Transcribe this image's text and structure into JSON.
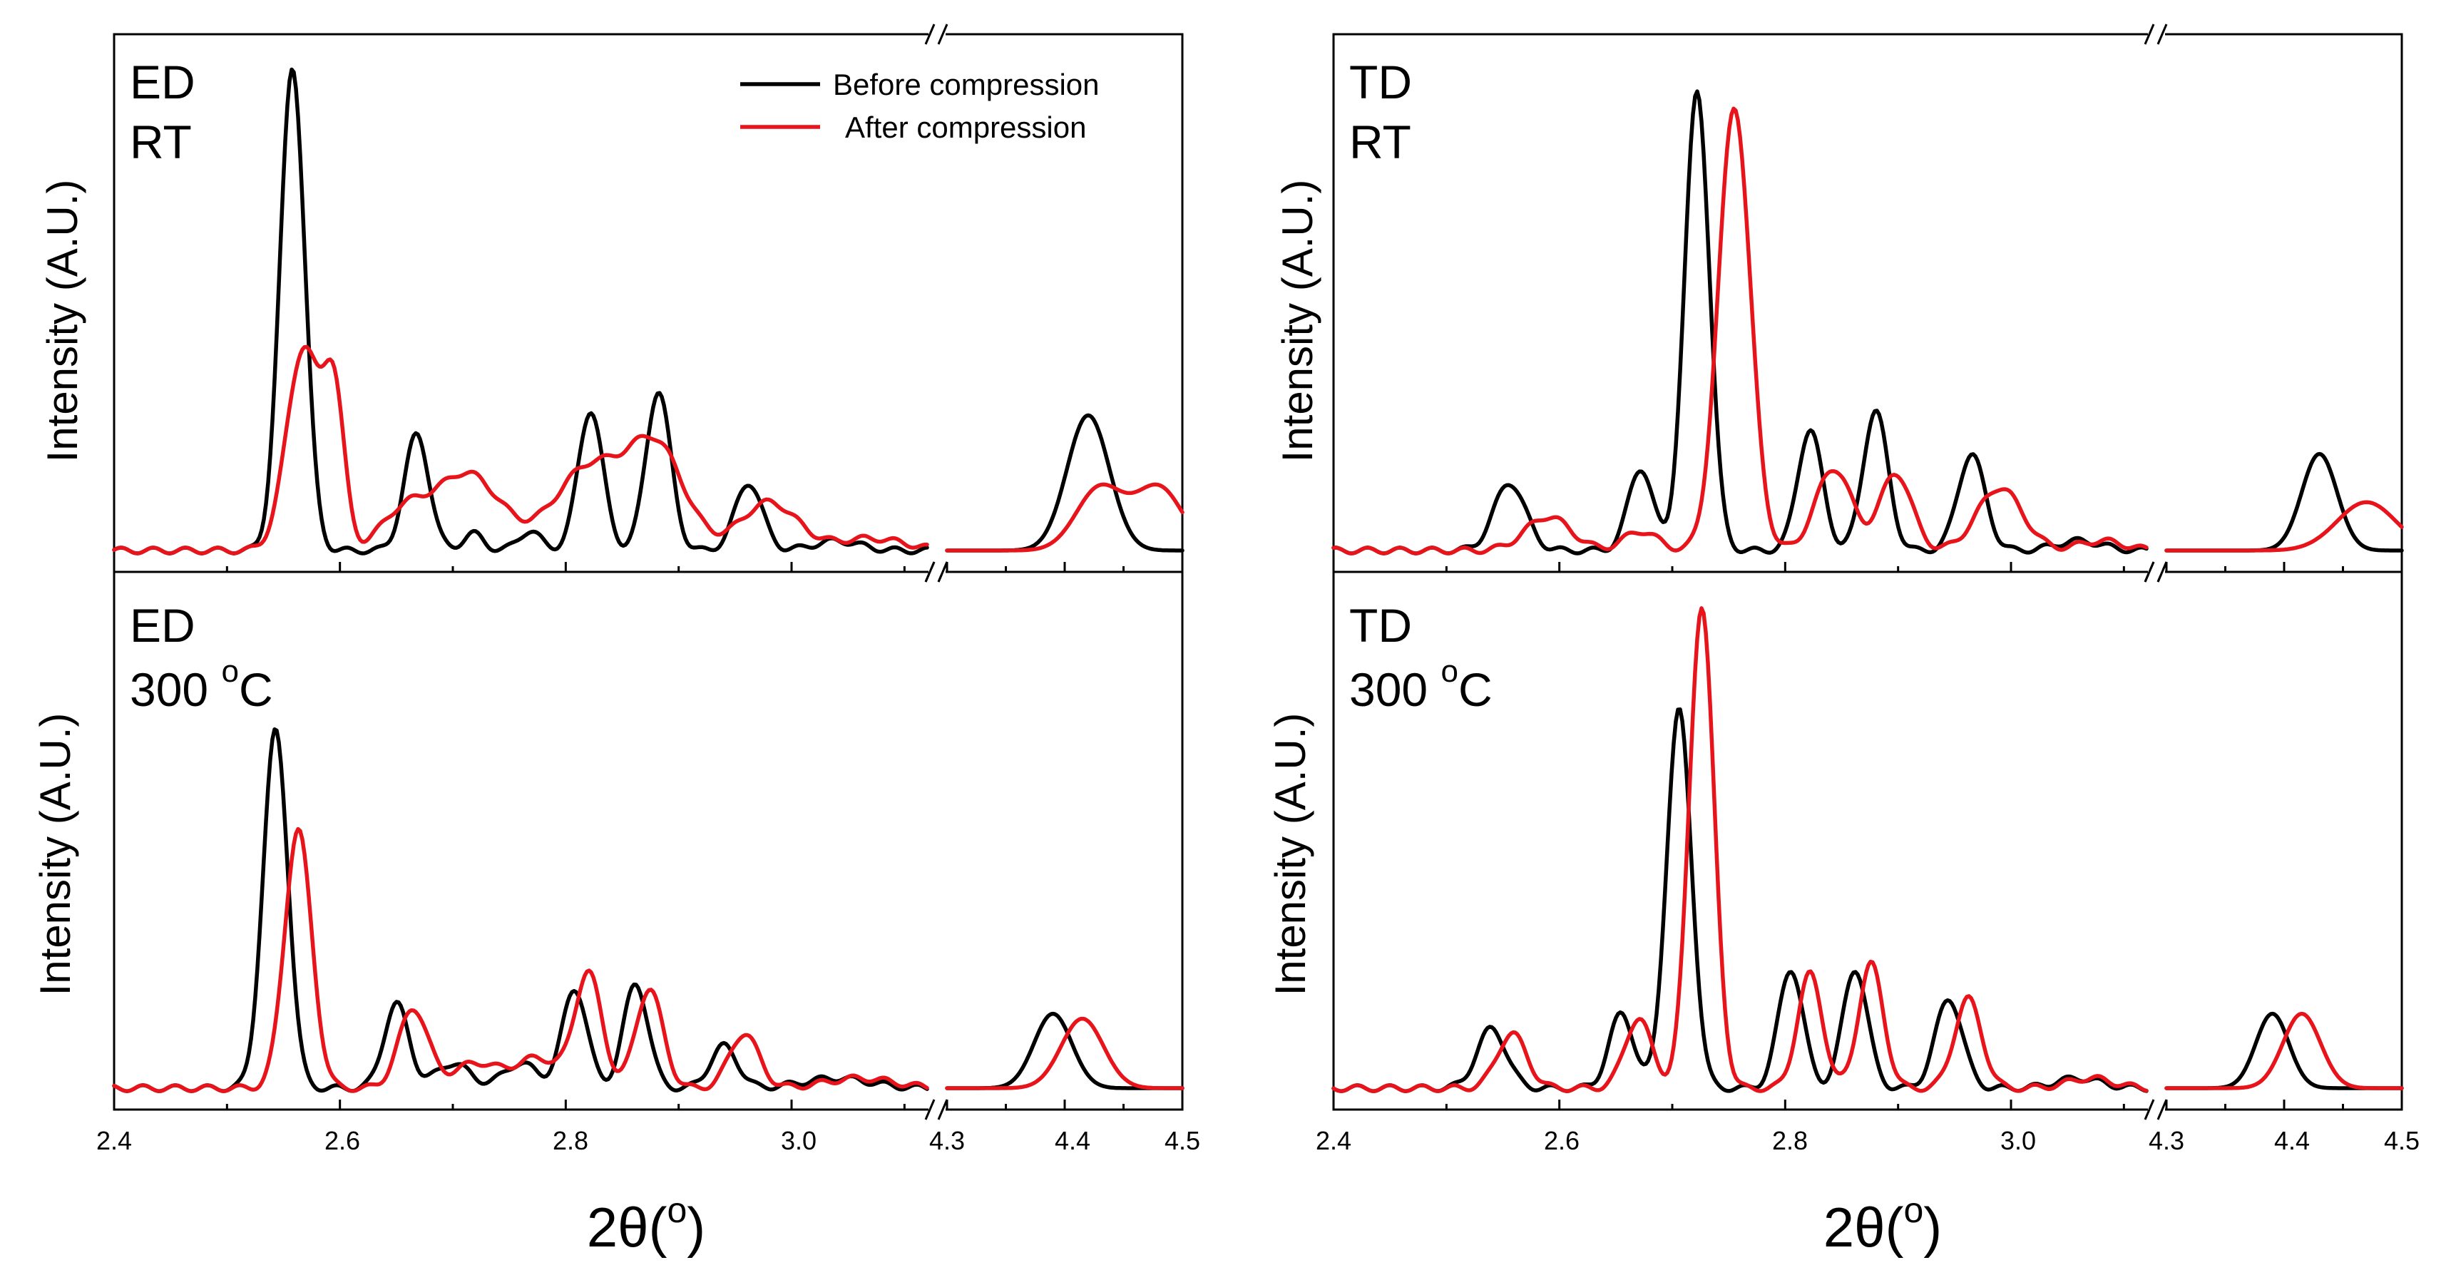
{
  "chart_data": {
    "type": "line",
    "figure_xlabel": "2θ(°)",
    "xlabel_parts": [
      "2",
      "θ",
      "(",
      "o",
      ")"
    ],
    "ylabel": "Intensity (A.U.)",
    "legend": {
      "placement": "top-right of top-left panel",
      "entries": [
        {
          "name": "Before compression",
          "color": "#000000"
        },
        {
          "name": "After compression",
          "color": "#e8141b"
        }
      ]
    },
    "axis_segments": [
      {
        "range": [
          2.4,
          3.12
        ],
        "ticks": [
          2.4,
          2.6,
          2.8,
          3.0
        ],
        "tick_labels": [
          "2.4",
          "2.6",
          "2.8",
          "3.0"
        ]
      },
      {
        "range": [
          4.3,
          4.5
        ],
        "ticks": [
          4.3,
          4.4,
          4.5
        ],
        "tick_labels": [
          "4.3",
          "4.4",
          "4.5"
        ]
      }
    ],
    "axis_break": true,
    "series_colors": {
      "before": "#000000",
      "after": "#e8141b"
    },
    "panels": [
      {
        "id": "ed-rt",
        "label_lines": [
          "ED",
          "RT"
        ],
        "peaks": {
          "before": {
            "seg1": [
              [
                2.558,
                1.0,
                0.011
              ],
              [
                2.668,
                0.24,
                0.011
              ],
              [
                2.718,
                0.035,
                0.009
              ],
              [
                2.768,
                0.04,
                0.01
              ],
              [
                2.822,
                0.29,
                0.011
              ],
              [
                2.882,
                0.33,
                0.011
              ],
              [
                2.962,
                0.14,
                0.012
              ],
              [
                3.04,
                0.02,
                0.02
              ]
            ],
            "seg2": [
              [
                4.42,
                0.28,
                0.018
              ]
            ]
          },
          "after": {
            "seg1": [
              [
                2.568,
                0.42,
                0.015
              ],
              [
                2.595,
                0.3,
                0.009
              ],
              [
                2.655,
                0.07,
                0.02
              ],
              [
                2.712,
                0.16,
                0.03
              ],
              [
                2.82,
                0.17,
                0.03
              ],
              [
                2.88,
                0.21,
                0.025
              ],
              [
                2.98,
                0.1,
                0.025
              ],
              [
                3.07,
                0.025,
                0.03
              ]
            ],
            "seg2": [
              [
                4.43,
                0.13,
                0.02
              ],
              [
                4.48,
                0.13,
                0.02
              ]
            ]
          }
        }
      },
      {
        "id": "td-rt",
        "label_lines": [
          "TD",
          "RT"
        ],
        "peaks": {
          "before": {
            "seg1": [
              [
                2.556,
                0.14,
                0.014
              ],
              [
                2.672,
                0.17,
                0.011
              ],
              [
                2.722,
                0.95,
                0.011
              ],
              [
                2.822,
                0.25,
                0.011
              ],
              [
                2.88,
                0.29,
                0.011
              ],
              [
                2.965,
                0.2,
                0.012
              ],
              [
                3.06,
                0.02,
                0.02
              ]
            ],
            "seg2": [
              [
                4.43,
                0.2,
                0.015
              ]
            ]
          },
          "after": {
            "seg1": [
              [
                2.59,
                0.07,
                0.02
              ],
              [
                2.672,
                0.04,
                0.015
              ],
              [
                2.755,
                0.92,
                0.014
              ],
              [
                2.843,
                0.17,
                0.016
              ],
              [
                2.898,
                0.16,
                0.014
              ],
              [
                2.99,
                0.13,
                0.02
              ],
              [
                3.08,
                0.02,
                0.02
              ]
            ],
            "seg2": [
              [
                4.47,
                0.1,
                0.025
              ]
            ]
          }
        }
      },
      {
        "id": "ed-300",
        "label_lines": [
          "ED",
          "300 °C"
        ],
        "label_parts": [
          "300 ",
          "o",
          "C"
        ],
        "peaks": {
          "before": {
            "seg1": [
              [
                2.543,
                0.72,
                0.011
              ],
              [
                2.65,
                0.17,
                0.011
              ],
              [
                2.7,
                0.05,
                0.015
              ],
              [
                2.76,
                0.05,
                0.015
              ],
              [
                2.808,
                0.2,
                0.011
              ],
              [
                2.862,
                0.21,
                0.011
              ],
              [
                2.94,
                0.085,
                0.012
              ],
              [
                3.04,
                0.02,
                0.03
              ]
            ],
            "seg2": [
              [
                4.39,
                0.15,
                0.016
              ]
            ]
          },
          "after": {
            "seg1": [
              [
                2.563,
                0.52,
                0.012
              ],
              [
                2.665,
                0.16,
                0.013
              ],
              [
                2.72,
                0.05,
                0.02
              ],
              [
                2.775,
                0.06,
                0.02
              ],
              [
                2.82,
                0.23,
                0.012
              ],
              [
                2.874,
                0.2,
                0.012
              ],
              [
                2.958,
                0.11,
                0.013
              ],
              [
                3.06,
                0.02,
                0.03
              ]
            ],
            "seg2": [
              [
                4.415,
                0.14,
                0.018
              ]
            ]
          }
        }
      },
      {
        "id": "td-300",
        "label_lines": [
          "TD",
          "300 °C"
        ],
        "label_parts": [
          "300 ",
          "o",
          "C"
        ],
        "peaks": {
          "before": {
            "seg1": [
              [
                2.54,
                0.12,
                0.013
              ],
              [
                2.655,
                0.15,
                0.011
              ],
              [
                2.706,
                0.76,
                0.011
              ],
              [
                2.805,
                0.24,
                0.011
              ],
              [
                2.862,
                0.24,
                0.011
              ],
              [
                2.945,
                0.18,
                0.012
              ],
              [
                3.06,
                0.02,
                0.02
              ]
            ],
            "seg2": [
              [
                4.39,
                0.15,
                0.014
              ]
            ]
          },
          "after": {
            "seg1": [
              [
                2.558,
                0.11,
                0.013
              ],
              [
                2.67,
                0.14,
                0.012
              ],
              [
                2.726,
                0.97,
                0.011
              ],
              [
                2.822,
                0.23,
                0.011
              ],
              [
                2.876,
                0.25,
                0.011
              ],
              [
                2.962,
                0.18,
                0.012
              ],
              [
                3.07,
                0.02,
                0.02
              ]
            ],
            "seg2": [
              [
                4.415,
                0.15,
                0.016
              ]
            ]
          }
        }
      }
    ]
  }
}
